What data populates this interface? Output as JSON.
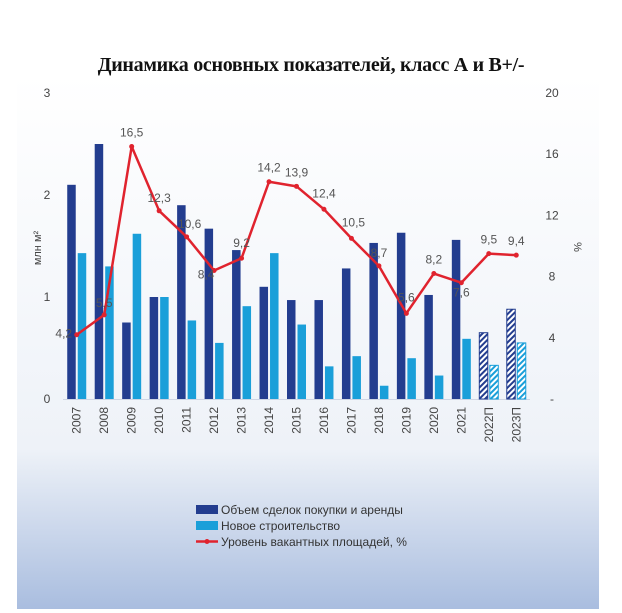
{
  "title": "Динамика основных показателей, класс А и В+/-",
  "chart_data": {
    "type": "bar",
    "categories": [
      "2007",
      "2008",
      "2009",
      "2010",
      "2011",
      "2012",
      "2013",
      "2014",
      "2015",
      "2016",
      "2017",
      "2018",
      "2019",
      "2020",
      "2021",
      "2022П",
      "2023П"
    ],
    "series": [
      {
        "name": "Объем сделок покупки и аренды",
        "type": "bar",
        "axis": "left",
        "color": "#233d8f",
        "values": [
          2.1,
          2.5,
          0.75,
          1.0,
          1.9,
          1.67,
          1.46,
          1.1,
          0.97,
          0.97,
          1.28,
          1.53,
          1.63,
          1.02,
          1.56,
          0.65,
          0.88
        ],
        "forecast_from_index": 15
      },
      {
        "name": "Новое строительство",
        "type": "bar",
        "axis": "left",
        "color": "#1a9fd9",
        "values": [
          1.43,
          1.3,
          1.62,
          1.0,
          0.77,
          0.55,
          0.91,
          1.43,
          0.73,
          0.32,
          0.42,
          0.13,
          0.4,
          0.23,
          0.59,
          0.33,
          0.55
        ],
        "forecast_from_index": 15
      },
      {
        "name": "Уровень вакантных площадей, %",
        "type": "line",
        "axis": "right",
        "color": "#e0232e",
        "values": [
          4.2,
          5.5,
          16.5,
          12.3,
          10.6,
          8.4,
          9.2,
          14.2,
          13.9,
          12.4,
          10.5,
          8.7,
          5.6,
          8.2,
          7.6,
          9.5,
          9.4
        ],
        "labels": [
          "4,2",
          "5,5",
          "16,5",
          "12,3",
          "10,6",
          "8,4",
          "9,2",
          "14,2",
          "13,9",
          "12,4",
          "10,5",
          "8,7",
          "5,6",
          "8,2",
          "7,6",
          "9,5",
          "9,4"
        ]
      }
    ],
    "y_left": {
      "label": "млн м²",
      "ylim": [
        0,
        3
      ],
      "ticks": [
        "0",
        "1",
        "2",
        "3"
      ]
    },
    "y_right": {
      "label": "%",
      "ylim": [
        0,
        20
      ],
      "ticks": [
        "-",
        "4",
        "8",
        "12",
        "16",
        "20"
      ]
    },
    "legend_position": "bottom"
  }
}
